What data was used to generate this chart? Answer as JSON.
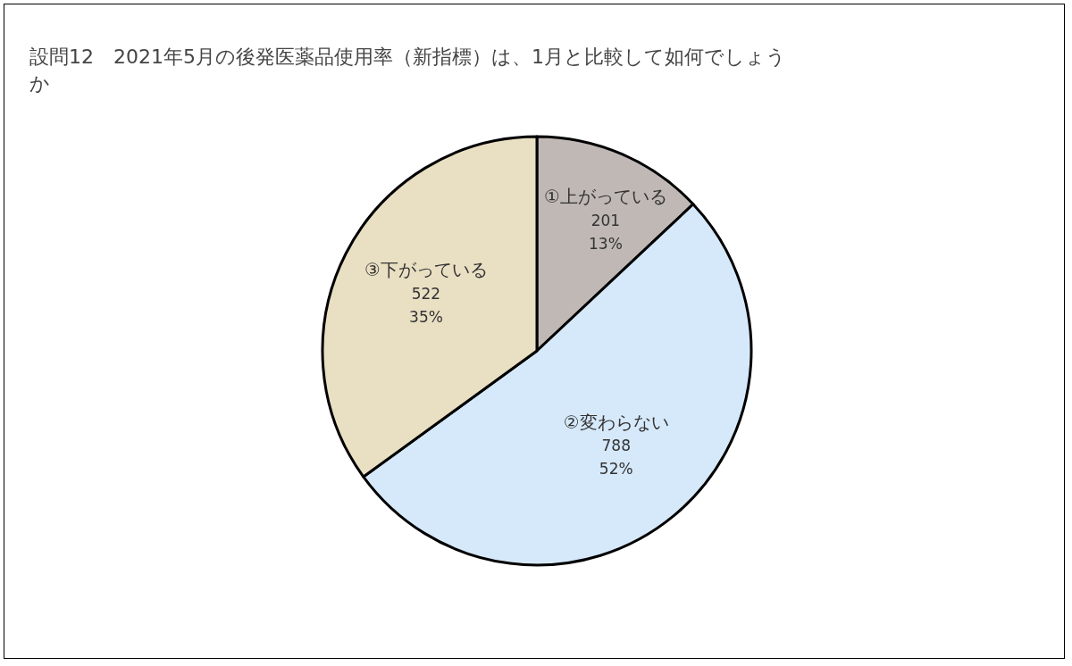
{
  "chart_data": {
    "type": "pie",
    "title": "設問12　2021年5月の後発医薬品使用率（新指標）は、1月と比較して如何でしょうか",
    "categories": [
      "①上がっている",
      "②変わらない",
      "③下がっている"
    ],
    "values": [
      13,
      52,
      35
    ],
    "colors": [
      "#bfb8b5",
      "#d6e9fb",
      "#e9dfc3"
    ],
    "value_labels": [
      "201\n13%",
      "788\n52%",
      "522\n35%"
    ]
  }
}
